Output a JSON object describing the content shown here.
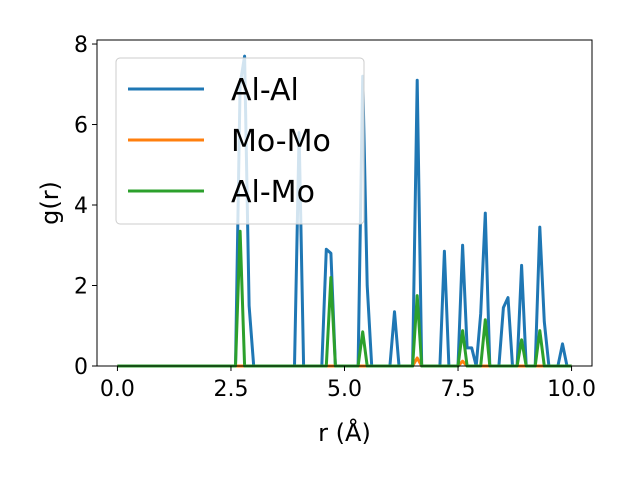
{
  "chart_data": {
    "type": "line",
    "xlabel": "r (Å)",
    "ylabel": "g(r)",
    "xlim": [
      -0.45,
      10.45
    ],
    "ylim": [
      0,
      8.1
    ],
    "xticks": [
      0.0,
      2.5,
      5.0,
      7.5,
      10.0
    ],
    "xtick_labels": [
      "0.0",
      "2.5",
      "5.0",
      "7.5",
      "10.0"
    ],
    "yticks": [
      0,
      2,
      4,
      6,
      8
    ],
    "ytick_labels": [
      "0",
      "2",
      "4",
      "6",
      "8"
    ],
    "grid": false,
    "legend_position": "upper-left",
    "series": [
      {
        "name": "Al-Al",
        "color": "#1f77b4",
        "x": [
          0,
          2.6,
          2.7,
          2.8,
          2.9,
          3.0,
          3.9,
          4.0,
          4.1,
          4.5,
          4.6,
          4.7,
          4.8,
          5.3,
          5.4,
          5.5,
          5.6,
          6.0,
          6.1,
          6.2,
          6.5,
          6.6,
          6.7,
          7.1,
          7.2,
          7.3,
          7.5,
          7.6,
          7.7,
          7.8,
          7.9,
          8.0,
          8.1,
          8.2,
          8.3,
          8.4,
          8.5,
          8.6,
          8.7,
          8.8,
          8.9,
          9.0,
          9.2,
          9.3,
          9.4,
          9.5,
          9.7,
          9.8,
          9.9,
          10.0
        ],
        "y": [
          0,
          0,
          7.0,
          7.7,
          1.5,
          0,
          0,
          5.8,
          0,
          0,
          2.9,
          2.8,
          0,
          0,
          7.2,
          2.0,
          0,
          0,
          1.35,
          0,
          0,
          7.1,
          0,
          0,
          2.85,
          0,
          0,
          3.0,
          0.45,
          0.45,
          0,
          1.3,
          3.8,
          0,
          0,
          0,
          1.45,
          1.7,
          0,
          0,
          2.5,
          0,
          0,
          3.45,
          1.1,
          0,
          0,
          0.55,
          0,
          0
        ]
      },
      {
        "name": "Mo-Mo",
        "color": "#ff7f0e",
        "x": [
          0,
          6.5,
          6.6,
          6.7,
          7.5,
          7.6,
          7.7,
          10.0
        ],
        "y": [
          0,
          0,
          0.2,
          0,
          0,
          0.12,
          0,
          0
        ]
      },
      {
        "name": "Al-Mo",
        "color": "#2ca02c",
        "x": [
          0,
          2.6,
          2.7,
          2.8,
          4.6,
          4.7,
          4.8,
          5.3,
          5.4,
          5.5,
          6.5,
          6.6,
          6.7,
          7.5,
          7.6,
          7.7,
          8.0,
          8.1,
          8.2,
          8.8,
          8.9,
          9.0,
          9.2,
          9.3,
          9.4,
          10.0
        ],
        "y": [
          0,
          0,
          3.35,
          0,
          0,
          2.2,
          0,
          0,
          0.85,
          0,
          0,
          1.75,
          0,
          0,
          0.88,
          0,
          0,
          1.15,
          0,
          0,
          0.65,
          0,
          0,
          0.88,
          0,
          0
        ]
      }
    ]
  }
}
